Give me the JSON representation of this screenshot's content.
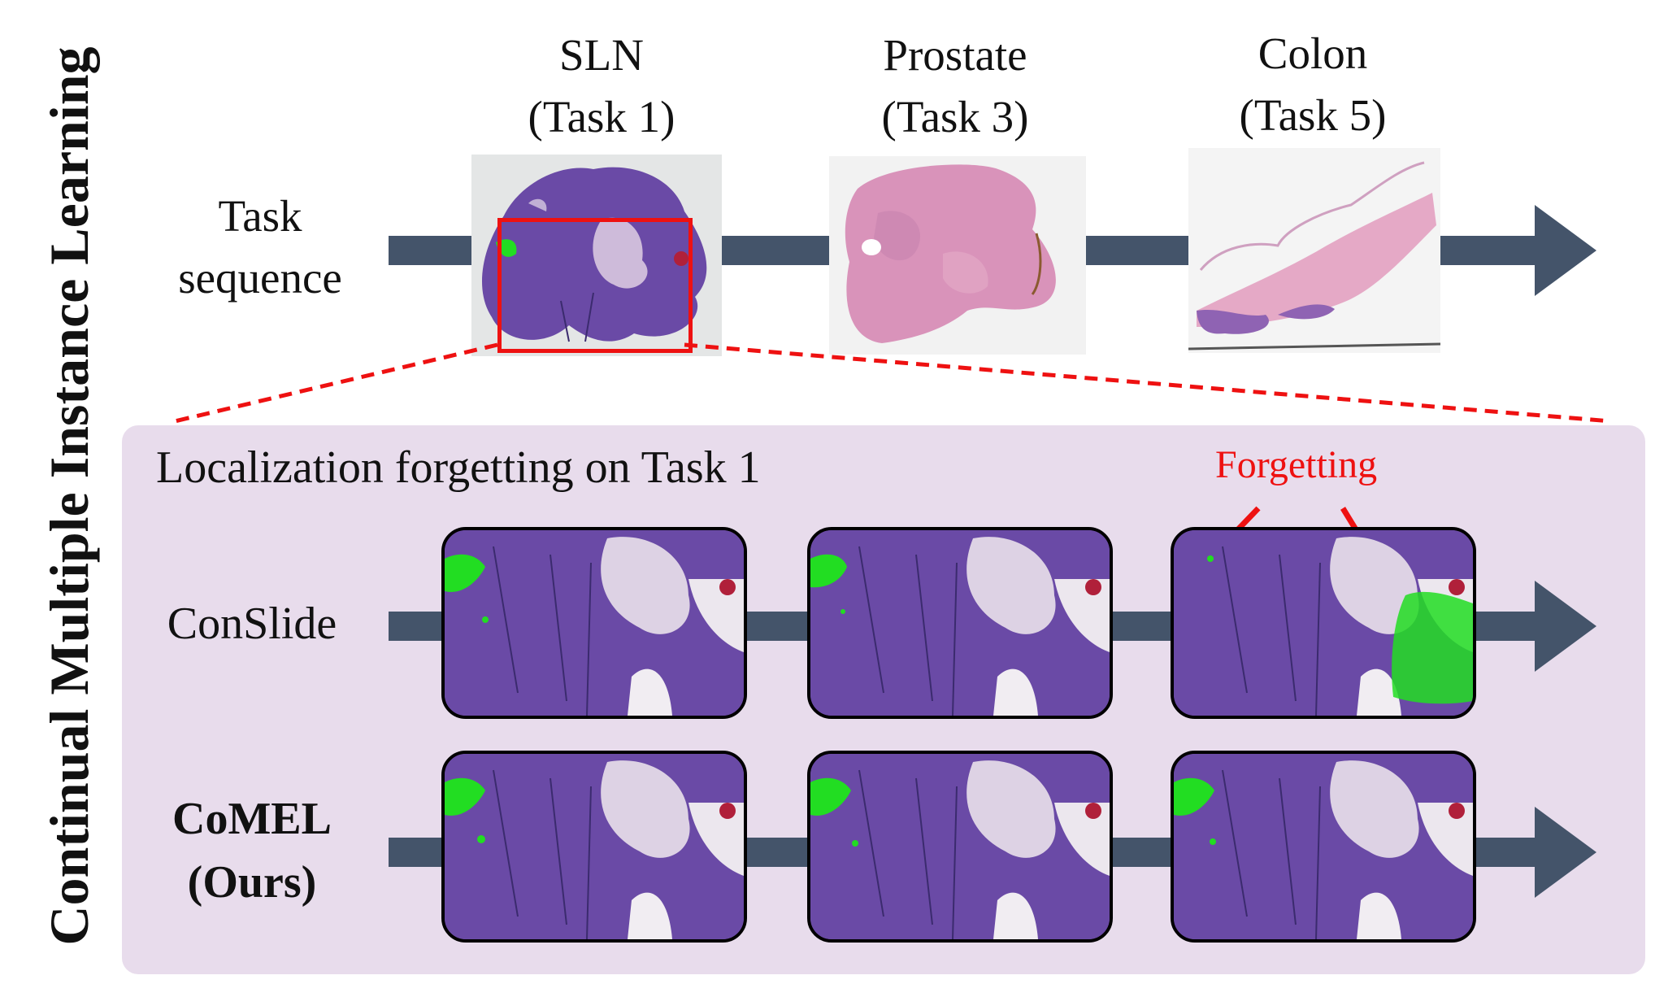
{
  "side_title": "Continual Multiple Instance Learning",
  "task_sequence_label": [
    "Task",
    "sequence"
  ],
  "tasks": [
    {
      "name": "SLN",
      "task": "(Task 1)"
    },
    {
      "name": "Prostate",
      "task": "(Task 3)"
    },
    {
      "name": "Colon",
      "task": "(Task 5)"
    }
  ],
  "panel_heading": "Localization forgetting on Task 1",
  "forgetting_label": "Forgetting",
  "rows": [
    {
      "label": [
        "ConSlide"
      ],
      "bold": false
    },
    {
      "label": [
        "CoMEL",
        "(Ours)"
      ],
      "bold": true
    }
  ],
  "colors": {
    "arrow": "#44546a",
    "panel": "#e8dcec",
    "highlight_box": "#ee1111",
    "tissue": "#6a4aa6",
    "detection": "#22dd22"
  }
}
